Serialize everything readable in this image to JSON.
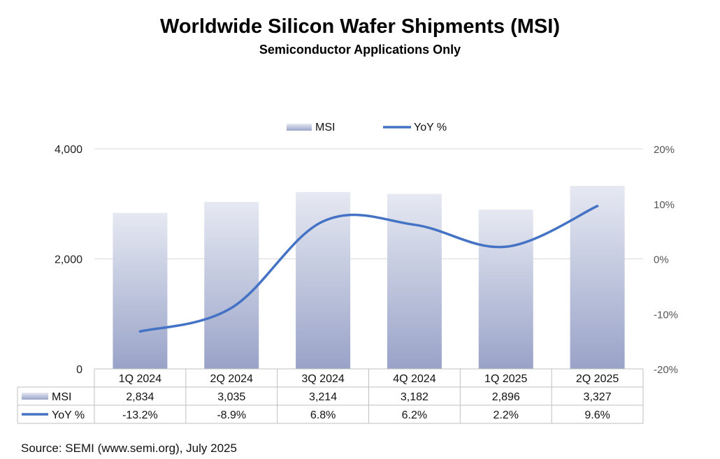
{
  "chart_data": {
    "type": "bar",
    "title": "Worldwide Silicon Wafer Shipments (MSI)",
    "subtitle": "Semiconductor Applications Only",
    "categories": [
      "1Q 2024",
      "2Q 2024",
      "3Q 2024",
      "4Q 2024",
      "1Q 2025",
      "2Q 2025"
    ],
    "series": [
      {
        "name": "MSI",
        "type": "bar",
        "axis": "left",
        "values": [
          2834,
          3035,
          3214,
          3182,
          2896,
          3327
        ],
        "labels": [
          "2,834",
          "3,035",
          "3,214",
          "3,182",
          "2,896",
          "3,327"
        ]
      },
      {
        "name": "YoY %",
        "type": "line",
        "axis": "right",
        "values": [
          -13.2,
          -8.9,
          6.8,
          6.2,
          2.2,
          9.6
        ],
        "labels": [
          "-13.2%",
          "-8.9%",
          "6.8%",
          "6.2%",
          "2.2%",
          "9.6%"
        ]
      }
    ],
    "y_left": {
      "ylim": [
        0,
        4000
      ],
      "ticks": [
        0,
        2000,
        4000
      ],
      "tick_labels": [
        "0",
        "2,000",
        "4,000"
      ]
    },
    "y_right": {
      "ylim": [
        -20,
        20
      ],
      "ticks": [
        -20,
        -10,
        0,
        10,
        20
      ],
      "tick_labels": [
        "-20%",
        "-10%",
        "0%",
        "10%",
        "20%"
      ]
    },
    "legend_position": "top-center",
    "grid": true,
    "data_table": true,
    "colors": {
      "bar_top": "#e6e9f2",
      "bar_bottom": "#99a3c8",
      "line": "#4472c4",
      "grid": "#d9d9d9",
      "table_border": "#bfbfbf"
    }
  },
  "footnote": "Source: SEMI (www.semi.org), July 2025"
}
